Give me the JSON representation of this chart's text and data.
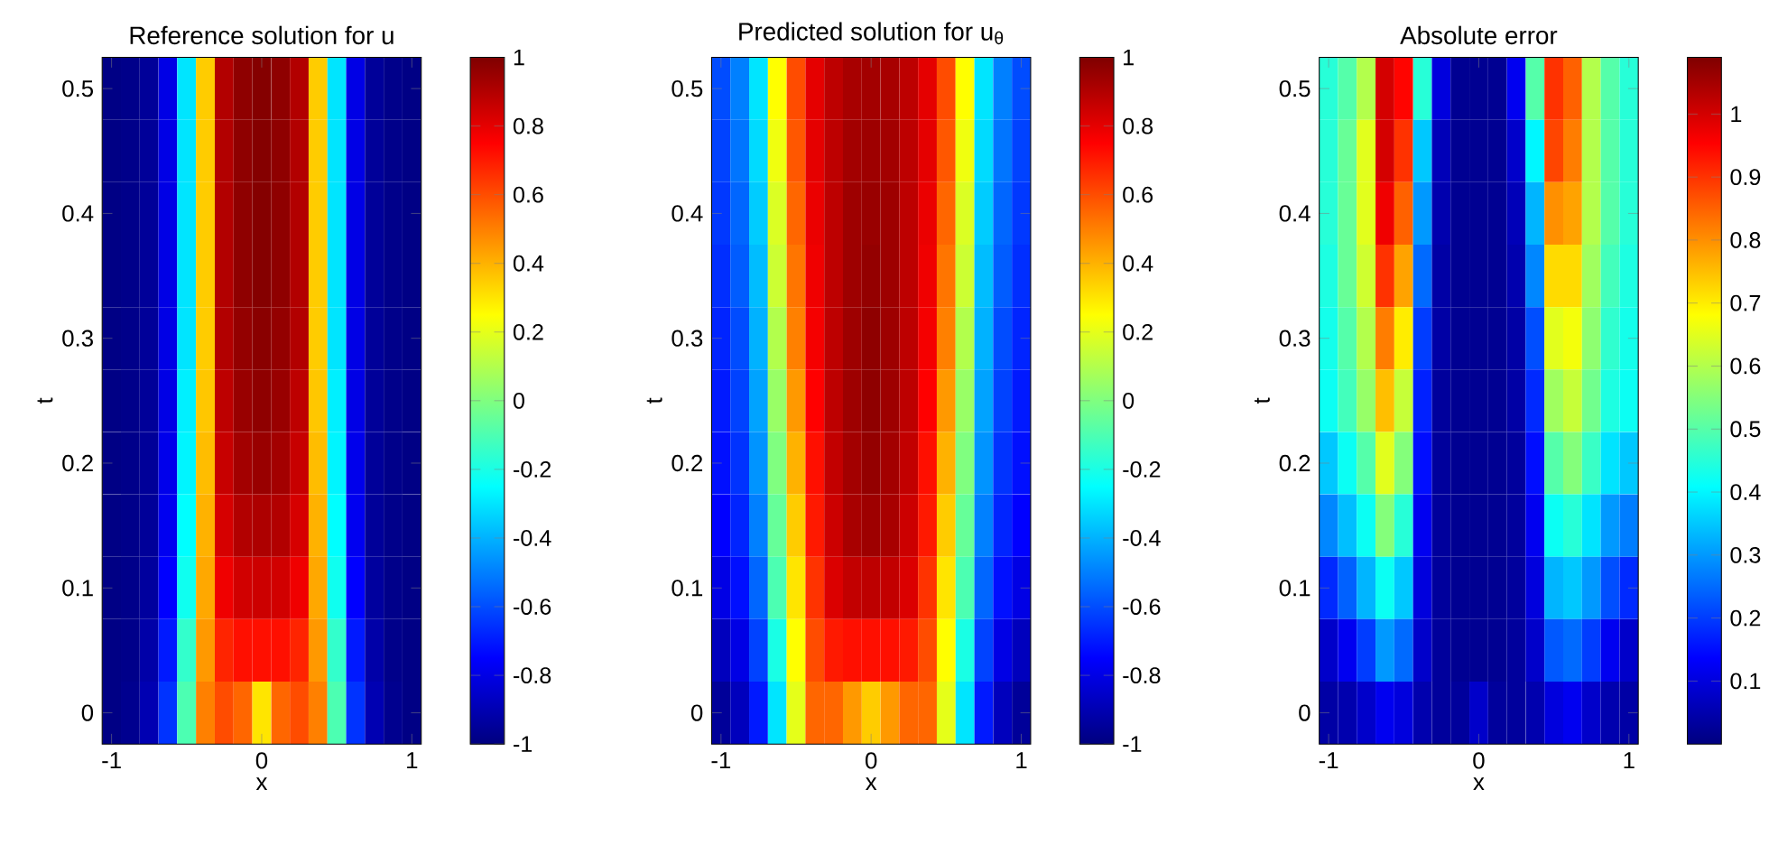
{
  "chart_data": [
    {
      "type": "heatmap",
      "title": "Reference solution for u",
      "xlabel": "x",
      "ylabel": "t",
      "categories": [
        "-1",
        null,
        null,
        null,
        null,
        null,
        null,
        null,
        "0",
        null,
        null,
        null,
        null,
        null,
        null,
        null,
        "1"
      ],
      "y_categories": [
        "0.5",
        null,
        "0.4",
        null,
        "0.3",
        null,
        "0.2",
        null,
        "0.1",
        null,
        "0"
      ],
      "clim": [
        -1,
        1
      ],
      "cticks": [
        -1,
        -0.8,
        -0.6,
        -0.4,
        -0.2,
        0,
        0.2,
        0.4,
        0.6,
        0.8,
        1
      ],
      "cells": [
        [
          -0.99,
          -0.98,
          -0.95,
          -0.8,
          -0.3,
          0.35,
          0.9,
          0.97,
          0.99,
          0.97,
          0.9,
          0.35,
          -0.3,
          -0.8,
          -0.95,
          -0.98,
          -0.99
        ],
        [
          -0.99,
          -0.98,
          -0.95,
          -0.8,
          -0.3,
          0.35,
          0.9,
          0.97,
          0.99,
          0.97,
          0.9,
          0.35,
          -0.3,
          -0.8,
          -0.95,
          -0.98,
          -0.99
        ],
        [
          -0.99,
          -0.98,
          -0.95,
          -0.8,
          -0.3,
          0.35,
          0.9,
          0.97,
          0.99,
          0.97,
          0.9,
          0.35,
          -0.3,
          -0.8,
          -0.95,
          -0.98,
          -0.99
        ],
        [
          -0.99,
          -0.98,
          -0.95,
          -0.8,
          -0.3,
          0.35,
          0.9,
          0.97,
          0.99,
          0.97,
          0.9,
          0.35,
          -0.3,
          -0.8,
          -0.95,
          -0.98,
          -0.99
        ],
        [
          -0.99,
          -0.98,
          -0.95,
          -0.8,
          -0.3,
          0.35,
          0.9,
          0.96,
          0.98,
          0.96,
          0.9,
          0.35,
          -0.3,
          -0.8,
          -0.95,
          -0.98,
          -0.99
        ],
        [
          -0.99,
          -0.98,
          -0.95,
          -0.8,
          -0.28,
          0.36,
          0.88,
          0.95,
          0.97,
          0.95,
          0.88,
          0.36,
          -0.28,
          -0.8,
          -0.95,
          -0.98,
          -0.99
        ],
        [
          -0.99,
          -0.98,
          -0.95,
          -0.79,
          -0.27,
          0.38,
          0.86,
          0.93,
          0.95,
          0.93,
          0.86,
          0.38,
          -0.27,
          -0.79,
          -0.95,
          -0.98,
          -0.99
        ],
        [
          -0.99,
          -0.98,
          -0.95,
          -0.78,
          -0.25,
          0.4,
          0.83,
          0.9,
          0.91,
          0.9,
          0.83,
          0.4,
          -0.25,
          -0.78,
          -0.95,
          -0.98,
          -0.99
        ],
        [
          -0.99,
          -0.98,
          -0.94,
          -0.75,
          -0.22,
          0.42,
          0.78,
          0.84,
          0.85,
          0.84,
          0.78,
          0.42,
          -0.22,
          -0.75,
          -0.94,
          -0.98,
          -0.99
        ],
        [
          -0.99,
          -0.98,
          -0.92,
          -0.7,
          -0.15,
          0.45,
          0.68,
          0.72,
          0.72,
          0.72,
          0.68,
          0.45,
          -0.15,
          -0.7,
          -0.92,
          -0.98,
          -0.99
        ],
        [
          -0.99,
          -0.97,
          -0.9,
          -0.65,
          -0.1,
          0.5,
          0.6,
          0.55,
          0.3,
          0.55,
          0.6,
          0.5,
          -0.1,
          -0.65,
          -0.9,
          -0.97,
          -0.99
        ]
      ]
    },
    {
      "type": "heatmap",
      "title": "Predicted solution for u$_{θ}$",
      "xlabel": "x",
      "ylabel": "t",
      "categories": [
        "-1",
        null,
        null,
        null,
        null,
        null,
        null,
        null,
        "0",
        null,
        null,
        null,
        null,
        null,
        null,
        null,
        "1"
      ],
      "y_categories": [
        "0.5",
        null,
        "0.4",
        null,
        "0.3",
        null,
        "0.2",
        null,
        "0.1",
        null,
        "0"
      ],
      "clim": [
        -1,
        1
      ],
      "cticks": [
        -1,
        -0.8,
        -0.6,
        -0.4,
        -0.2,
        0,
        0.2,
        0.4,
        0.6,
        0.8,
        1
      ],
      "cells": [
        [
          -0.6,
          -0.5,
          -0.3,
          0.25,
          0.6,
          0.8,
          0.88,
          0.92,
          0.93,
          0.92,
          0.88,
          0.8,
          0.6,
          0.25,
          -0.3,
          -0.5,
          -0.6
        ],
        [
          -0.62,
          -0.52,
          -0.32,
          0.22,
          0.58,
          0.8,
          0.88,
          0.93,
          0.94,
          0.93,
          0.88,
          0.8,
          0.58,
          0.22,
          -0.32,
          -0.52,
          -0.62
        ],
        [
          -0.64,
          -0.55,
          -0.35,
          0.18,
          0.55,
          0.79,
          0.88,
          0.94,
          0.95,
          0.94,
          0.88,
          0.79,
          0.55,
          0.18,
          -0.35,
          -0.55,
          -0.64
        ],
        [
          -0.66,
          -0.57,
          -0.38,
          0.15,
          0.52,
          0.78,
          0.88,
          0.94,
          0.96,
          0.94,
          0.88,
          0.78,
          0.52,
          0.15,
          -0.38,
          -0.57,
          -0.66
        ],
        [
          -0.68,
          -0.6,
          -0.4,
          0.1,
          0.5,
          0.77,
          0.88,
          0.94,
          0.97,
          0.94,
          0.88,
          0.77,
          0.5,
          0.1,
          -0.4,
          -0.6,
          -0.68
        ],
        [
          -0.7,
          -0.62,
          -0.43,
          0.05,
          0.45,
          0.75,
          0.88,
          0.94,
          0.97,
          0.94,
          0.88,
          0.75,
          0.45,
          0.05,
          -0.43,
          -0.62,
          -0.7
        ],
        [
          -0.72,
          -0.65,
          -0.46,
          0.0,
          0.4,
          0.72,
          0.87,
          0.93,
          0.96,
          0.93,
          0.87,
          0.72,
          0.4,
          0.0,
          -0.46,
          -0.65,
          -0.72
        ],
        [
          -0.75,
          -0.68,
          -0.5,
          -0.05,
          0.35,
          0.7,
          0.85,
          0.92,
          0.94,
          0.92,
          0.85,
          0.7,
          0.35,
          -0.05,
          -0.5,
          -0.68,
          -0.75
        ],
        [
          -0.8,
          -0.72,
          -0.55,
          -0.1,
          0.3,
          0.65,
          0.82,
          0.87,
          0.88,
          0.87,
          0.82,
          0.65,
          0.3,
          -0.1,
          -0.55,
          -0.72,
          -0.8
        ],
        [
          -0.88,
          -0.8,
          -0.62,
          -0.2,
          0.25,
          0.6,
          0.7,
          0.72,
          0.72,
          0.72,
          0.7,
          0.6,
          0.25,
          -0.2,
          -0.62,
          -0.8,
          -0.88
        ],
        [
          -0.95,
          -0.88,
          -0.7,
          -0.3,
          0.2,
          0.55,
          0.55,
          0.45,
          0.35,
          0.45,
          0.55,
          0.55,
          0.2,
          -0.3,
          -0.7,
          -0.88,
          -0.95
        ]
      ]
    },
    {
      "type": "heatmap",
      "title": "Absolute error",
      "xlabel": "x",
      "ylabel": "t",
      "categories": [
        "-1",
        null,
        null,
        null,
        null,
        null,
        null,
        null,
        "0",
        null,
        null,
        null,
        null,
        null,
        null,
        null,
        "1"
      ],
      "y_categories": [
        "0.5",
        null,
        "0.4",
        null,
        "0.3",
        null,
        "0.2",
        null,
        "0.1",
        null,
        "0"
      ],
      "clim": [
        0,
        1.09
      ],
      "cticks": [
        0.1,
        0.2,
        0.3,
        0.4,
        0.5,
        0.6,
        0.7,
        0.8,
        0.9,
        1
      ],
      "cells": [
        [
          0.45,
          0.5,
          0.6,
          1.0,
          0.95,
          0.45,
          0.1,
          0.02,
          0.02,
          0.02,
          0.12,
          0.5,
          0.9,
          0.85,
          0.6,
          0.5,
          0.45
        ],
        [
          0.45,
          0.52,
          0.65,
          1.0,
          0.9,
          0.35,
          0.06,
          0.02,
          0.02,
          0.02,
          0.08,
          0.4,
          0.88,
          0.82,
          0.6,
          0.5,
          0.45
        ],
        [
          0.45,
          0.52,
          0.65,
          0.97,
          0.85,
          0.3,
          0.05,
          0.02,
          0.02,
          0.02,
          0.06,
          0.33,
          0.8,
          0.78,
          0.6,
          0.5,
          0.45
        ],
        [
          0.44,
          0.52,
          0.63,
          0.9,
          0.78,
          0.25,
          0.04,
          0.02,
          0.02,
          0.02,
          0.05,
          0.28,
          0.72,
          0.72,
          0.58,
          0.48,
          0.44
        ],
        [
          0.43,
          0.5,
          0.6,
          0.82,
          0.7,
          0.2,
          0.04,
          0.02,
          0.02,
          0.02,
          0.04,
          0.22,
          0.65,
          0.67,
          0.56,
          0.46,
          0.43
        ],
        [
          0.42,
          0.48,
          0.57,
          0.75,
          0.62,
          0.17,
          0.03,
          0.02,
          0.02,
          0.02,
          0.04,
          0.18,
          0.58,
          0.62,
          0.53,
          0.44,
          0.42
        ],
        [
          0.35,
          0.42,
          0.5,
          0.65,
          0.55,
          0.15,
          0.03,
          0.02,
          0.02,
          0.02,
          0.03,
          0.15,
          0.5,
          0.55,
          0.47,
          0.38,
          0.35
        ],
        [
          0.28,
          0.34,
          0.42,
          0.55,
          0.45,
          0.12,
          0.03,
          0.02,
          0.02,
          0.02,
          0.03,
          0.12,
          0.42,
          0.45,
          0.38,
          0.3,
          0.27
        ],
        [
          0.18,
          0.24,
          0.33,
          0.42,
          0.35,
          0.1,
          0.03,
          0.02,
          0.02,
          0.02,
          0.03,
          0.1,
          0.33,
          0.35,
          0.3,
          0.22,
          0.18
        ],
        [
          0.08,
          0.12,
          0.2,
          0.3,
          0.25,
          0.08,
          0.03,
          0.02,
          0.02,
          0.02,
          0.03,
          0.08,
          0.23,
          0.25,
          0.2,
          0.12,
          0.08
        ],
        [
          0.04,
          0.05,
          0.08,
          0.12,
          0.1,
          0.05,
          0.03,
          0.03,
          0.08,
          0.03,
          0.03,
          0.05,
          0.1,
          0.12,
          0.08,
          0.05,
          0.04
        ]
      ]
    }
  ]
}
